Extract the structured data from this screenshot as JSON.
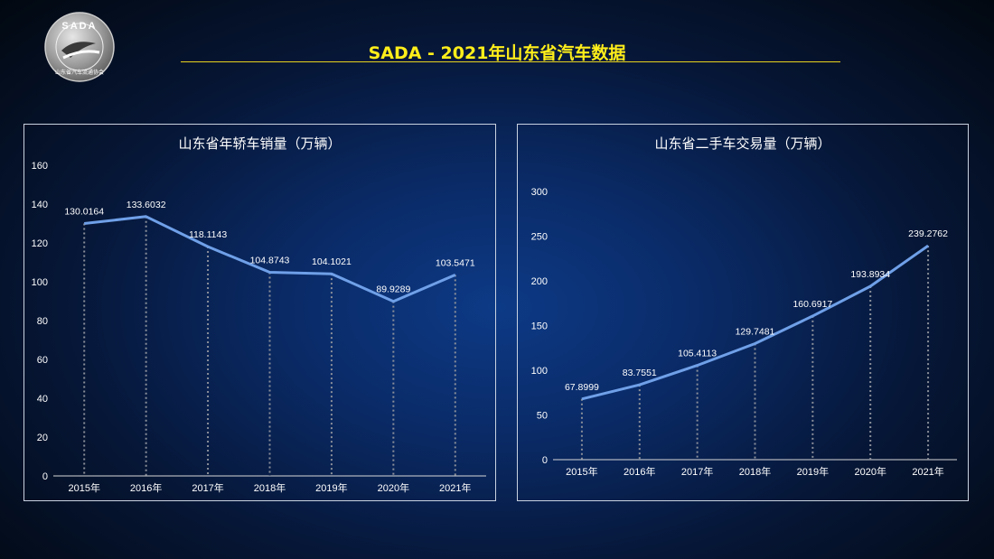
{
  "header": {
    "logo_text": "SADA",
    "logo_subtext": "山东省汽车流通协会",
    "title": "SADA -  2021年山东省汽车数据"
  },
  "chart_data": [
    {
      "type": "line",
      "title": "山东省年轿车销量（万辆）",
      "categories": [
        "2015年",
        "2016年",
        "2017年",
        "2018年",
        "2019年",
        "2020年",
        "2021年"
      ],
      "values": [
        130.0164,
        133.6032,
        118.1143,
        104.8743,
        104.1021,
        89.9289,
        103.5471
      ],
      "data_labels": [
        "130.0164",
        "133.6032",
        "118.1143",
        "104.8743",
        "104.1021",
        "89.9289",
        "103.5471"
      ],
      "ylim": [
        0,
        160
      ],
      "yticks": [
        "0",
        "20",
        "40",
        "60",
        "80",
        "100",
        "120",
        "140",
        "160"
      ],
      "ytick_values": [
        0,
        20,
        40,
        60,
        80,
        100,
        120,
        140,
        160
      ],
      "line_color": "#6fa0e8",
      "drop_lines": true
    },
    {
      "type": "line",
      "title": "山东省二手车交易量（万辆）",
      "categories": [
        "2015年",
        "2016年",
        "2017年",
        "2018年",
        "2019年",
        "2020年",
        "2021年"
      ],
      "values": [
        67.8999,
        83.7551,
        105.4113,
        129.7481,
        160.6917,
        193.8934,
        239.2762
      ],
      "data_labels": [
        "67.8999",
        "83.7551",
        "105.4113",
        "129.7481",
        "160.6917",
        "193.8934",
        "239.2762"
      ],
      "ylim": [
        0,
        300
      ],
      "yticks": [
        "0",
        "50",
        "100",
        "150",
        "200",
        "250",
        "300"
      ],
      "ytick_values": [
        0,
        50,
        100,
        150,
        200,
        250,
        300
      ],
      "line_color": "#6fa0e8",
      "drop_lines": true
    }
  ]
}
